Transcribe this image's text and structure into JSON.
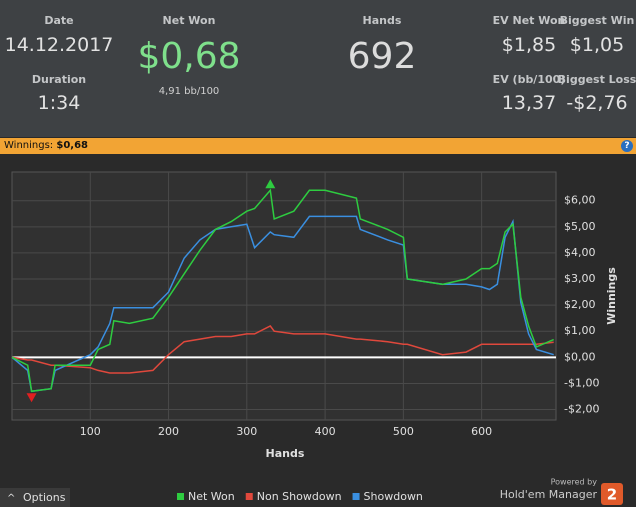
{
  "header": {
    "stats": [
      {
        "label": "Date",
        "value": "14.12.2017"
      },
      {
        "label": "Duration",
        "value": "1:34"
      },
      {
        "label": "Net Won",
        "value": "$0,68",
        "sub": "4,91 bb/100"
      },
      {
        "label": "Hands",
        "value": "692"
      },
      {
        "label": "EV Net Won",
        "value": "$1,85"
      },
      {
        "label": "Biggest Win",
        "value": "$1,05"
      },
      {
        "label": "EV (bb/100)",
        "value": "13,37"
      },
      {
        "label": "Biggest Loss",
        "value": "-$2,76"
      }
    ]
  },
  "banner": {
    "label": "Winnings:",
    "value": "$0,68",
    "help": "?"
  },
  "chart_data": {
    "type": "line",
    "xlabel": "Hands",
    "ylabel": "Winnings",
    "x": [
      0,
      20,
      25,
      50,
      55,
      100,
      110,
      125,
      130,
      150,
      180,
      200,
      220,
      240,
      260,
      280,
      300,
      310,
      330,
      335,
      360,
      380,
      400,
      440,
      445,
      480,
      500,
      505,
      550,
      580,
      600,
      610,
      620,
      630,
      640,
      650,
      660,
      670,
      692
    ],
    "series": [
      {
        "name": "Net Won",
        "color": "#2ecc40",
        "values": [
          0,
          -0.3,
          -1.3,
          -1.2,
          -0.3,
          -0.3,
          0.3,
          0.5,
          1.4,
          1.3,
          1.5,
          2.3,
          3.2,
          4.1,
          4.9,
          5.2,
          5.6,
          5.7,
          6.4,
          5.3,
          5.6,
          6.4,
          6.4,
          6.1,
          5.3,
          4.9,
          4.6,
          3.0,
          2.8,
          3.0,
          3.4,
          3.4,
          3.6,
          4.8,
          5.1,
          2.3,
          1.2,
          0.4,
          0.68
        ]
      },
      {
        "name": "Non Showdown",
        "color": "#e0483c",
        "values": [
          0,
          -0.1,
          -0.1,
          -0.3,
          -0.3,
          -0.4,
          -0.5,
          -0.6,
          -0.6,
          -0.6,
          -0.5,
          0.1,
          0.6,
          0.7,
          0.8,
          0.8,
          0.9,
          0.9,
          1.2,
          1.0,
          0.9,
          0.9,
          0.9,
          0.7,
          0.7,
          0.6,
          0.5,
          0.5,
          0.1,
          0.2,
          0.5,
          0.5,
          0.5,
          0.5,
          0.5,
          0.5,
          0.5,
          0.5,
          0.58
        ]
      },
      {
        "name": "Showdown",
        "color": "#3a8fe0",
        "values": [
          0,
          -0.5,
          -1.3,
          -1.2,
          -0.5,
          0.1,
          0.4,
          1.3,
          1.9,
          1.9,
          1.9,
          2.5,
          3.8,
          4.5,
          4.9,
          5.0,
          5.1,
          4.2,
          4.8,
          4.7,
          4.6,
          5.4,
          5.4,
          5.4,
          4.9,
          4.5,
          4.3,
          3.0,
          2.8,
          2.8,
          2.7,
          2.6,
          2.8,
          4.6,
          5.2,
          2.1,
          0.9,
          0.3,
          0.1
        ]
      }
    ],
    "xlim": [
      0,
      695
    ],
    "xticks": [
      100,
      200,
      300,
      400,
      500,
      600
    ],
    "ylim": [
      -2.4,
      7.1
    ],
    "yticks": [
      {
        "value": -2,
        "label": "-$2,00"
      },
      {
        "value": -1,
        "label": "-$1,00"
      },
      {
        "value": 0,
        "label": "$0,00"
      },
      {
        "value": 1,
        "label": "$1,00"
      },
      {
        "value": 2,
        "label": "$2,00"
      },
      {
        "value": 3,
        "label": "$3,00"
      },
      {
        "value": 4,
        "label": "$4,00"
      },
      {
        "value": 5,
        "label": "$5,00"
      },
      {
        "value": 6,
        "label": "$6,00"
      }
    ],
    "grid": true,
    "legend": "bottom"
  },
  "footer": {
    "options": "Options",
    "powered_by": "Powered by",
    "brand": "Hold'em Manager",
    "badge": "2"
  }
}
